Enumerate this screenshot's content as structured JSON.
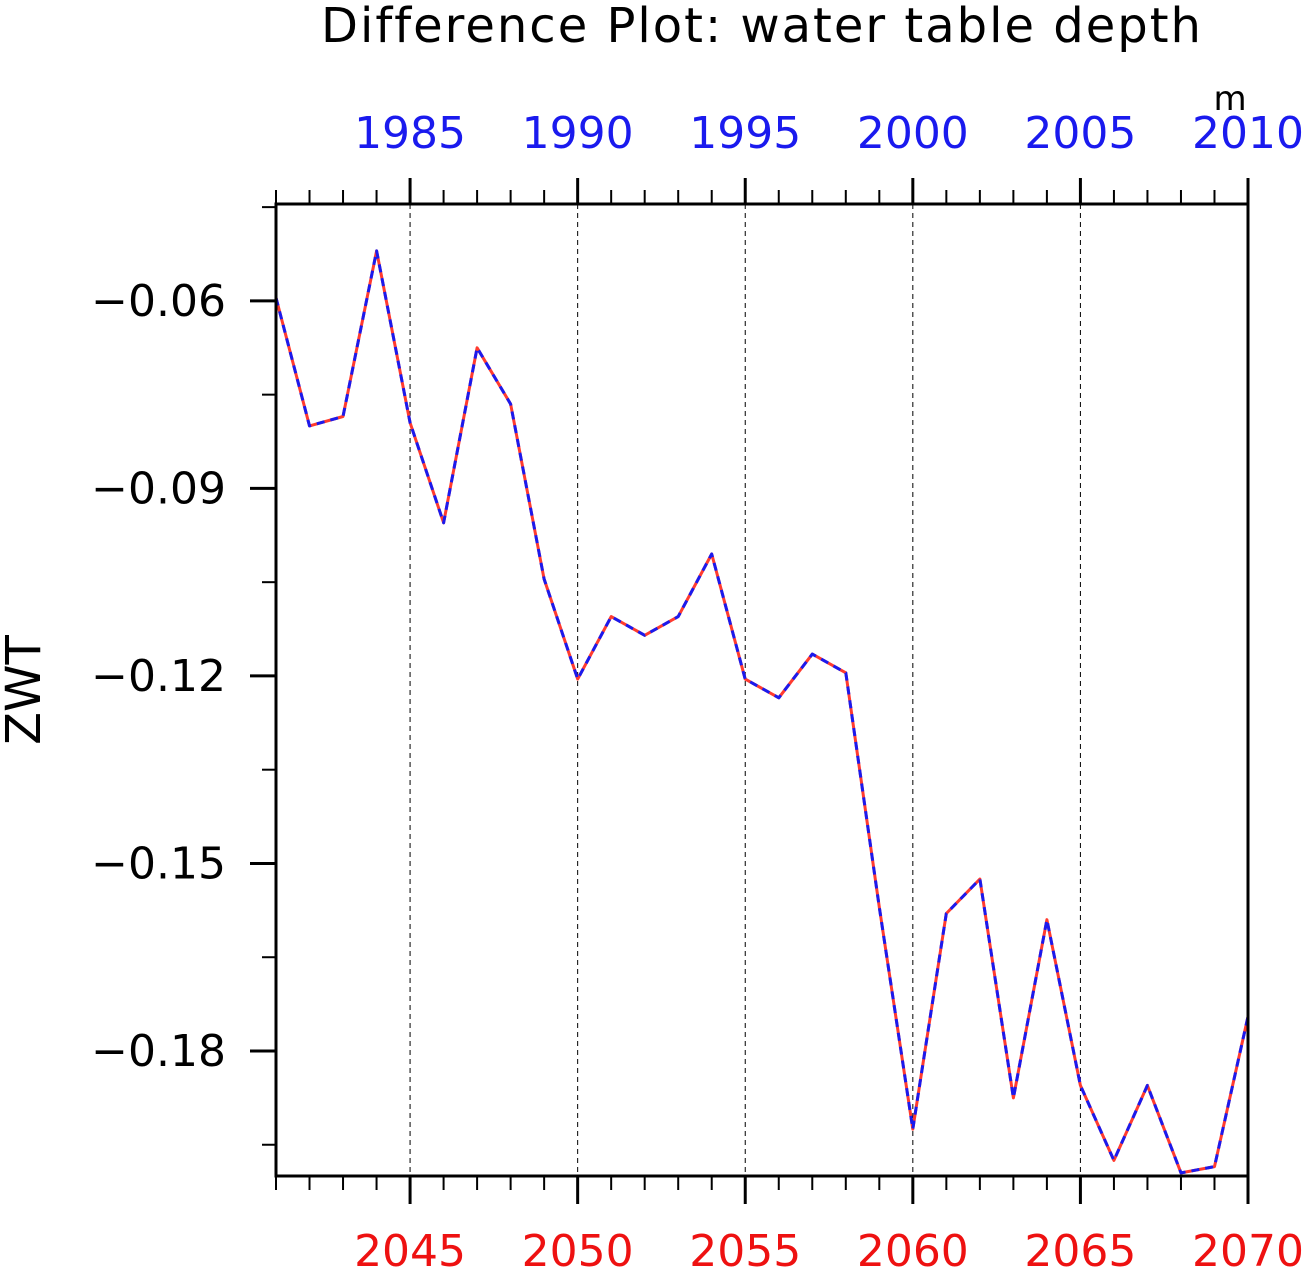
{
  "chart_data": {
    "type": "line",
    "title": "Difference Plot: water table depth",
    "units": "m",
    "ylabel": "ZWT",
    "xlabel": "",
    "ylim": [
      -0.2,
      -0.0445
    ],
    "grid": "vertical dashed at bottom-axis major ticks",
    "x_bottom": {
      "range": [
        2041,
        2070
      ],
      "ticks": [
        "2045",
        "2050",
        "2055",
        "2060",
        "2065",
        "2070"
      ],
      "color": "#ee1111"
    },
    "x_top": {
      "range": [
        1981,
        2010
      ],
      "ticks": [
        "1985",
        "1990",
        "1995",
        "2000",
        "2005",
        "2010"
      ],
      "color": "#1a1aee"
    },
    "y_ticks": [
      "-0.06",
      "-0.09",
      "-0.12",
      "-0.15",
      "-0.18"
    ],
    "x": [
      2041,
      2042,
      2043,
      2044,
      2045,
      2046,
      2047,
      2048,
      2049,
      2050,
      2051,
      2052,
      2053,
      2054,
      2055,
      2056,
      2057,
      2058,
      2059,
      2060,
      2061,
      2062,
      2063,
      2064,
      2065,
      2066,
      2067,
      2068,
      2069,
      2070
    ],
    "series": [
      {
        "line_color": "#ff3b2f",
        "dash_color": "#1a1aee",
        "values": [
          -0.0595,
          -0.08,
          -0.0785,
          -0.052,
          -0.0795,
          -0.0955,
          -0.0675,
          -0.0765,
          -0.1045,
          -0.1205,
          -0.1105,
          -0.1135,
          -0.1105,
          -0.1005,
          -0.1205,
          -0.1235,
          -0.1165,
          -0.1195,
          -0.157,
          -0.1925,
          -0.158,
          -0.1525,
          -0.1875,
          -0.159,
          -0.1855,
          -0.1975,
          -0.1855,
          -0.1995,
          -0.1985,
          -0.1745
        ]
      }
    ]
  }
}
